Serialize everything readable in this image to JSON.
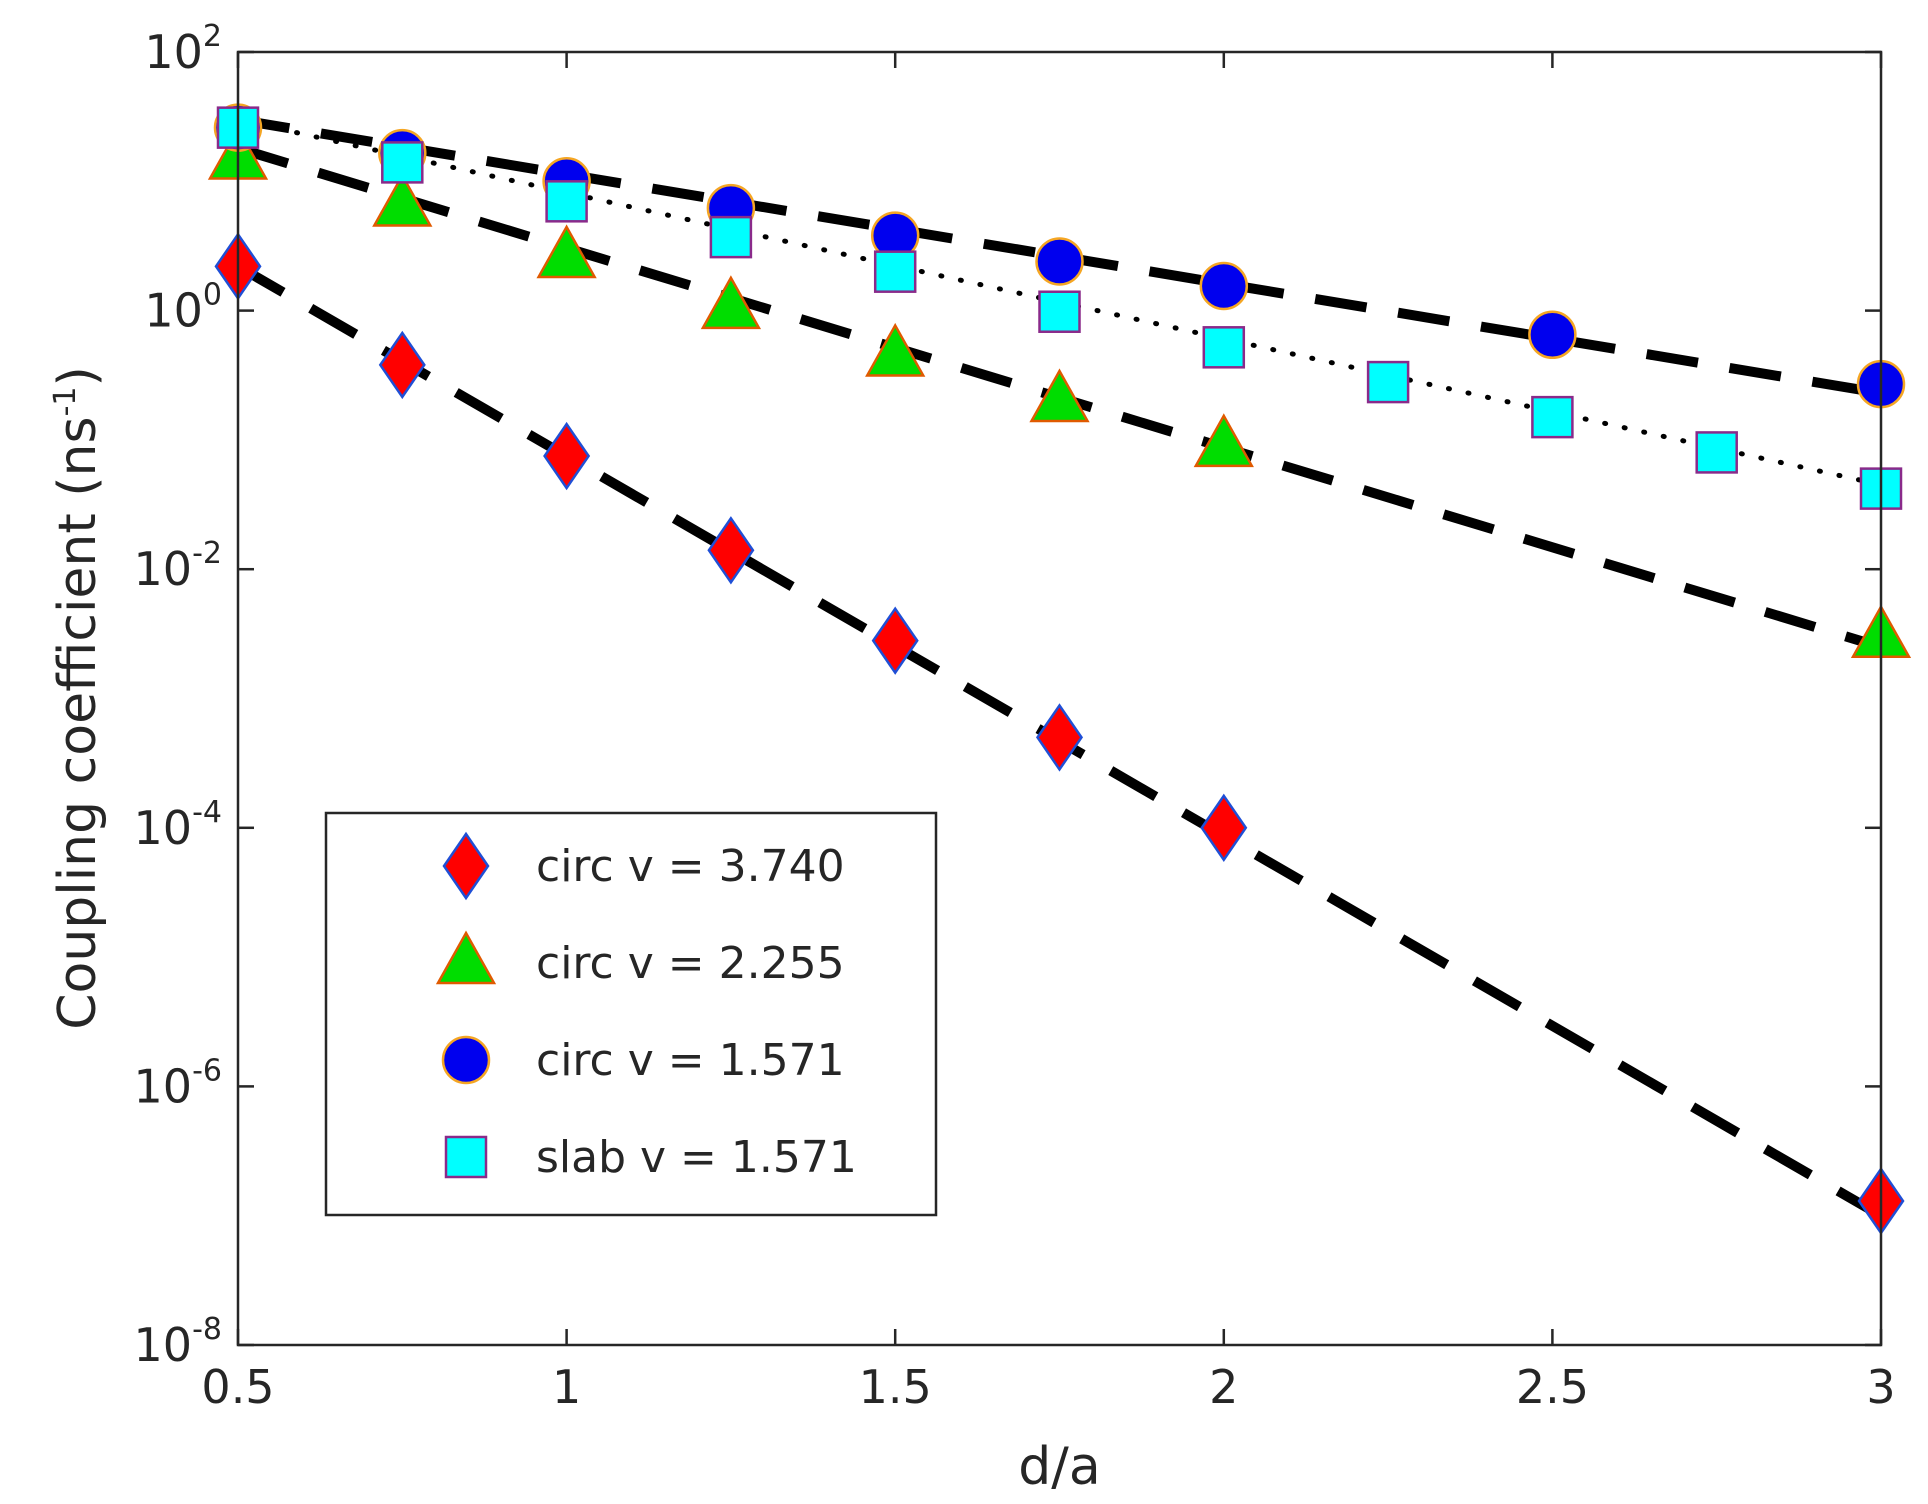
{
  "chart_data": {
    "type": "scatter",
    "xlabel": "d/a",
    "ylabel": "Coupling coefficient (ns",
    "ylabel_exp": "-1",
    "ylabel_tail": ")",
    "xlim": [
      0.5,
      3
    ],
    "ylim_log10": [
      -8,
      2
    ],
    "y_scale": "log",
    "x_ticks": [
      {
        "value": 0.5,
        "label": "0.5"
      },
      {
        "value": 1,
        "label": "1"
      },
      {
        "value": 1.5,
        "label": "1.5"
      },
      {
        "value": 2,
        "label": "2"
      },
      {
        "value": 2.5,
        "label": "2.5"
      },
      {
        "value": 3,
        "label": "3"
      }
    ],
    "y_ticks": [
      {
        "exp": 2,
        "base": "10",
        "sup": "2"
      },
      {
        "exp": 0,
        "base": "10",
        "sup": "0"
      },
      {
        "exp": -2,
        "base": "10",
        "sup": "-2"
      },
      {
        "exp": -4,
        "base": "10",
        "sup": "-4"
      },
      {
        "exp": -6,
        "base": "10",
        "sup": "-6"
      },
      {
        "exp": -8,
        "base": "10",
        "sup": "-8"
      }
    ],
    "legend_position": "lower-left",
    "series": [
      {
        "name": "circ v = 3.740",
        "marker": "diamond",
        "fill": "#ff0000",
        "edge": "#1f4fd6",
        "x": [
          0.5,
          0.75,
          1,
          1.25,
          1.5,
          1.75,
          2,
          3
        ],
        "y": [
          2.2,
          0.38,
          0.075,
          0.014,
          0.0028,
          0.0005,
          0.0001,
          1.3e-07
        ]
      },
      {
        "name": "circ v = 2.255",
        "marker": "triangle",
        "fill": "#00dd00",
        "edge": "#e05a00",
        "x": [
          0.5,
          0.75,
          1,
          1.25,
          1.5,
          1.75,
          2,
          3
        ],
        "y": [
          15,
          6.5,
          2.6,
          1.05,
          0.45,
          0.2,
          0.09,
          0.003
        ]
      },
      {
        "name": "circ v = 1.571",
        "marker": "circle",
        "fill": "#0000ee",
        "edge": "#f5a623",
        "x": [
          0.5,
          0.75,
          1,
          1.25,
          1.5,
          1.75,
          2,
          2.5,
          3
        ],
        "y": [
          26,
          16.5,
          10,
          6.2,
          3.8,
          2.4,
          1.55,
          0.65,
          0.27
        ]
      },
      {
        "name": "slab v = 1.571",
        "marker": "square",
        "fill": "#00ffff",
        "edge": "#8a2a8a",
        "x": [
          0.5,
          0.75,
          1,
          1.25,
          1.5,
          1.75,
          2,
          2.25,
          2.5,
          2.75,
          3
        ],
        "y": [
          26,
          14,
          7,
          3.7,
          2,
          0.98,
          0.52,
          0.28,
          0.15,
          0.08,
          0.042
        ]
      }
    ],
    "fit_lines": [
      {
        "name": "fit circ v = 3.740",
        "style": "dashed",
        "x": [
          0.5,
          3
        ],
        "y": [
          2.2,
          1e-07
        ]
      },
      {
        "name": "fit circ v = 2.255",
        "style": "dashed",
        "x": [
          0.5,
          3
        ],
        "y": [
          18,
          0.0025
        ]
      },
      {
        "name": "fit circ v = 1.571",
        "style": "dashed",
        "x": [
          0.5,
          3
        ],
        "y": [
          30,
          0.23
        ]
      },
      {
        "name": "fit slab v = 1.571",
        "style": "dotted",
        "x": [
          0.5,
          3
        ],
        "y": [
          30,
          0.045
        ]
      }
    ]
  }
}
